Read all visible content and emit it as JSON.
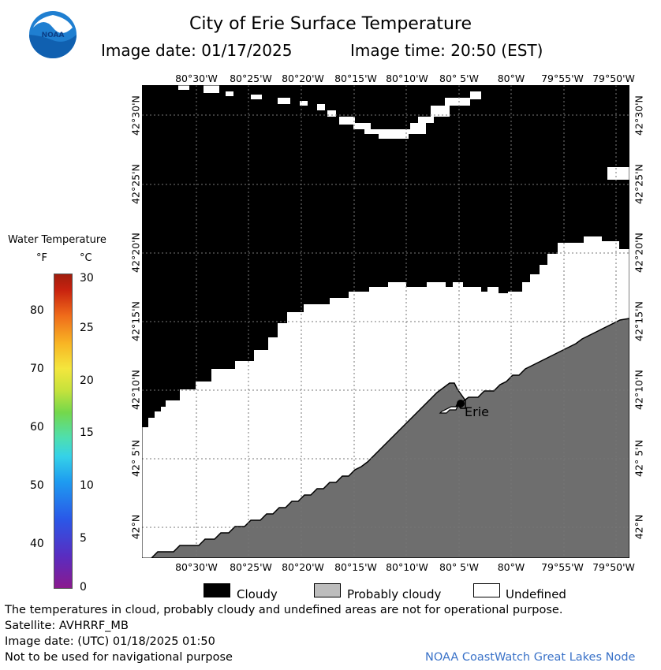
{
  "header": {
    "title": "City of Erie Surface Temperature",
    "image_date": "Image date: 01/17/2025",
    "image_time": "Image time: 20:50 (EST)"
  },
  "logo": {
    "text": "NOAA",
    "icon": "noaa-logo-icon"
  },
  "map": {
    "lon_labels": [
      "80°30'W",
      "80°25'W",
      "80°20'W",
      "80°15'W",
      "80°10'W",
      "80° 5'W",
      "80°W",
      "79°55'W",
      "79°50'W"
    ],
    "lat_labels": [
      "42°30'N",
      "42°25'N",
      "42°20'N",
      "42°15'N",
      "42°10'N",
      "42° 5'N",
      "42°N"
    ],
    "city_label": "Erie",
    "colors": {
      "cloudy": "#000000",
      "probably_cloudy": "#6e6e6e",
      "undefined": "#ffffff",
      "grid": "#888888"
    }
  },
  "legend": {
    "title": "Water Temperature",
    "unit_f": "°F",
    "unit_c": "°C",
    "f_ticks": [
      "80",
      "70",
      "60",
      "50",
      "40"
    ],
    "c_ticks": [
      "30",
      "25",
      "20",
      "15",
      "10",
      "5",
      "0"
    ]
  },
  "key": {
    "cloudy": "Cloudy",
    "probably_cloudy": "Probably cloudy",
    "undefined": "Undefined"
  },
  "footer": {
    "line1": "The temperatures in cloud, probably cloudy and undefined areas are not for operational purpose.",
    "line2": "Satellite: AVHRRF_MB",
    "line3": "Image date: (UTC) 01/18/2025  01:50",
    "line4": "Not to be used for navigational purpose",
    "credit": "NOAA CoastWatch Great Lakes Node"
  }
}
